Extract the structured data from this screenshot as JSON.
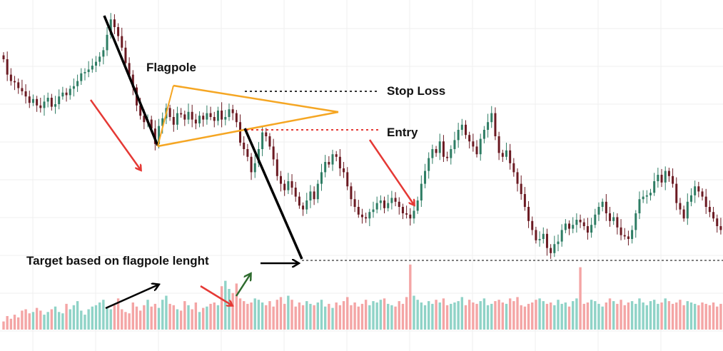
{
  "chart_data": {
    "type": "candlestick",
    "grid": true,
    "colors": {
      "up": "#2e7d64",
      "down": "#6b1a22",
      "volume_up": "#8fd3c7",
      "volume_down": "#f4a5a5",
      "flagpole_line": "#000000",
      "flag_triangle": "#f5a623",
      "stop_loss_line": "#333333",
      "entry_line": "#e53935",
      "arrow_red": "#e53935",
      "arrow_black": "#000000",
      "arrow_green": "#2e6b2e",
      "target_line": "#555555"
    },
    "price_close": [
      390,
      366,
      356,
      354,
      345,
      340,
      332,
      322,
      328,
      318,
      314,
      324,
      330,
      316,
      320,
      332,
      338,
      334,
      344,
      348,
      356,
      368,
      370,
      374,
      380,
      386,
      394,
      404,
      428,
      452,
      440,
      426,
      408,
      384,
      366,
      346,
      318,
      302,
      292,
      296,
      282,
      258,
      286,
      298,
      314,
      300,
      288,
      306,
      304,
      296,
      308,
      296,
      290,
      302,
      296,
      306,
      300,
      294,
      310,
      296,
      300,
      312,
      306,
      292,
      260,
      250,
      238,
      214,
      228,
      250,
      276,
      270,
      254,
      234,
      208,
      196,
      186,
      200,
      190,
      176,
      162,
      156,
      170,
      184,
      172,
      196,
      214,
      230,
      226,
      242,
      238,
      220,
      214,
      192,
      172,
      160,
      148,
      144,
      142,
      152,
      156,
      166,
      170,
      158,
      166,
      174,
      168,
      160,
      150,
      148,
      142,
      154,
      170,
      196,
      216,
      236,
      250,
      244,
      262,
      238,
      236,
      250,
      264,
      280,
      288,
      272,
      262,
      254,
      242,
      266,
      280,
      292,
      306,
      270,
      244,
      238,
      248,
      228,
      214,
      196,
      180,
      160,
      138,
      124,
      108,
      110,
      118,
      96,
      88,
      102,
      106,
      124,
      134,
      126,
      132,
      140,
      136,
      130,
      120,
      132,
      148,
      160,
      168,
      150,
      138,
      144,
      128,
      116,
      114,
      110,
      124,
      150,
      172,
      176,
      178,
      182,
      200,
      210,
      198,
      216,
      208,
      196,
      166,
      156,
      142,
      168,
      178,
      192,
      184,
      176,
      160,
      152,
      142,
      130,
      124,
      118
    ],
    "volume": [
      12,
      20,
      16,
      22,
      18,
      28,
      30,
      24,
      26,
      32,
      28,
      22,
      26,
      30,
      34,
      26,
      24,
      38,
      30,
      36,
      42,
      28,
      22,
      30,
      34,
      36,
      40,
      44,
      32,
      30,
      36,
      46,
      30,
      26,
      24,
      40,
      34,
      28,
      36,
      44,
      34,
      38,
      32,
      44,
      50,
      38,
      36,
      30,
      28,
      42,
      36,
      30,
      40,
      26,
      32,
      34,
      38,
      40,
      36,
      64,
      72,
      60,
      54,
      68,
      46,
      42,
      38,
      40,
      46,
      44,
      40,
      36,
      42,
      34,
      44,
      48,
      38,
      50,
      44,
      34,
      40,
      36,
      42,
      38,
      36,
      40,
      44,
      34,
      38,
      32,
      40,
      36,
      42,
      48,
      36,
      40,
      34,
      38,
      44,
      36,
      42,
      40,
      44,
      46,
      38,
      36,
      34,
      42,
      38,
      48,
      96,
      50,
      44,
      40,
      36,
      42,
      38,
      44,
      40,
      46,
      36,
      38,
      40,
      42,
      48,
      36,
      44,
      40,
      38,
      42,
      46,
      36,
      38,
      42,
      44,
      40,
      38,
      46,
      42,
      48,
      36,
      34,
      38,
      40,
      44,
      46,
      42,
      38,
      40,
      36,
      44,
      38,
      40,
      34,
      42,
      46,
      92,
      38,
      40,
      44,
      42,
      38,
      34,
      40,
      46,
      42,
      38,
      44,
      36,
      40,
      42,
      38,
      46,
      40,
      36,
      42,
      44,
      38,
      40,
      46,
      42,
      38,
      40,
      44,
      36,
      42,
      40,
      38,
      36,
      40,
      38,
      36,
      40,
      34,
      38,
      36
    ],
    "annotations": {
      "flagpole": "Flagpole",
      "stop_loss": "Stop Loss",
      "entry": "Entry",
      "target": "Target based on flagpole lenght"
    }
  }
}
